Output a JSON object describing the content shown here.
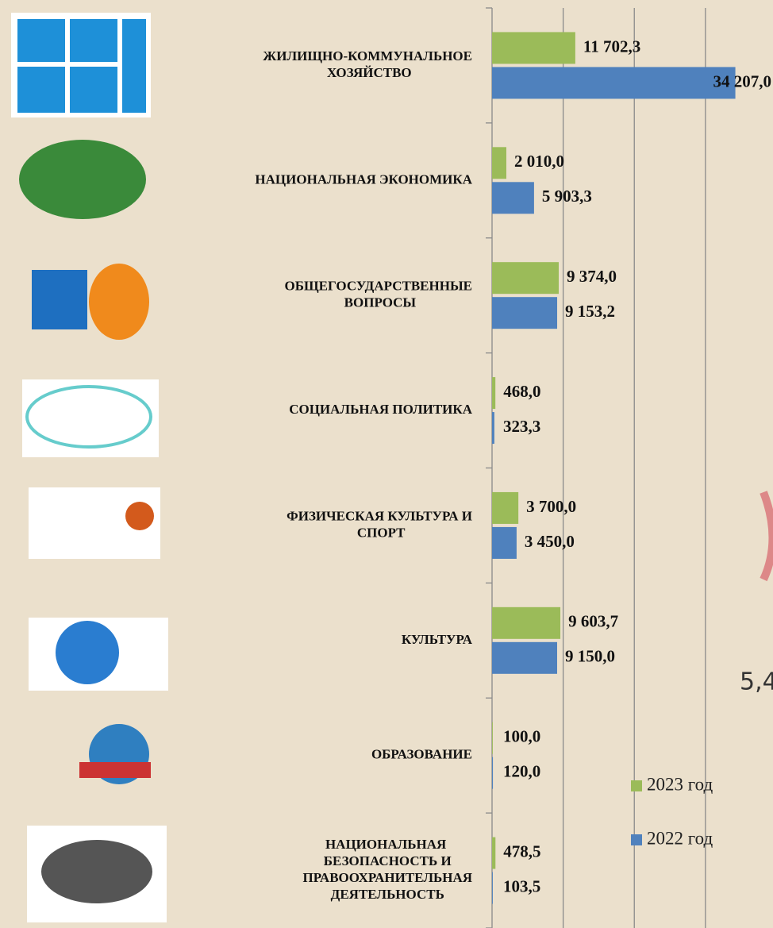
{
  "chart_data": {
    "type": "bar",
    "orientation": "horizontal",
    "categories": [
      "ЖИЛИЩНО-КОММУНАЛЬНОЕ ХОЗЯЙСТВО",
      "НАЦИОНАЛЬНАЯ ЭКОНОМИКА",
      "ОБЩЕГОСУДАРСТВЕННЫЕ ВОПРОСЫ",
      "СОЦИАЛЬНАЯ ПОЛИТИКА",
      "ФИЗИЧЕСКАЯ КУЛЬТУРА И СПОРТ",
      "КУЛЬТУРА",
      "ОБРАЗОВАНИЕ",
      "НАЦИОНАЛЬНАЯ БЕЗОПАСНОСТЬ И ПРАВООХРАНИТЕЛЬНАЯ ДЕЯТЕЛЬНОСТЬ"
    ],
    "series": [
      {
        "name": "2023 год",
        "color": "#9bbb59",
        "values": [
          11702.3,
          2010.0,
          9374.0,
          468.0,
          3700.0,
          9603.7,
          100.0,
          478.5
        ],
        "value_labels": [
          "11 702,3",
          "2 010,0",
          "9 374,0",
          "468,0",
          "3 700,0",
          "9 603,7",
          "100,0",
          "478,5"
        ]
      },
      {
        "name": "2022 год",
        "color": "#4f81bd",
        "values": [
          34207.0,
          5903.3,
          9153.2,
          323.3,
          3450.0,
          9150.0,
          120.0,
          103.5
        ],
        "value_labels": [
          "34 207,0",
          "5 903,3",
          "9 153,2",
          "323,3",
          "3 450,0",
          "9 150,0",
          "120,0",
          "103,5"
        ]
      }
    ],
    "xlim": [
      0,
      39500
    ],
    "gridlines": [
      10000,
      20000,
      30000
    ],
    "grid": true,
    "legend": "lower right"
  },
  "fragment": "5,4"
}
